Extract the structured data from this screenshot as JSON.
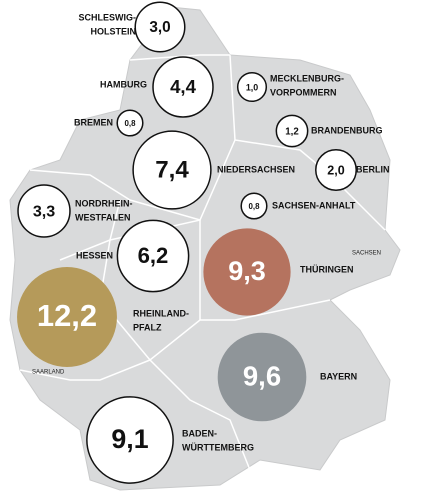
{
  "states": [
    {
      "name": [
        "SCHLESWIG-",
        "HOLSTEIN"
      ],
      "value": 3.0,
      "label": "3,0"
    },
    {
      "name": [
        "HAMBURG"
      ],
      "value": 4.4,
      "label": "4,4"
    },
    {
      "name": [
        "MECKLENBURG-",
        "VORPOMMERN"
      ],
      "value": 1.0,
      "label": "1,0"
    },
    {
      "name": [
        "BREMEN"
      ],
      "value": 0.8,
      "label": "0,8"
    },
    {
      "name": [
        "BRANDENBURG"
      ],
      "value": 1.2,
      "label": "1,2"
    },
    {
      "name": [
        "NIEDERSACHSEN"
      ],
      "value": 7.4,
      "label": "7,4"
    },
    {
      "name": [
        "BERLIN"
      ],
      "value": 2.0,
      "label": "2,0"
    },
    {
      "name": [
        "SACHSEN-ANHALT"
      ],
      "value": 0.8,
      "label": "0,8"
    },
    {
      "name": [
        "NORDRHEIN-",
        "WESTFALEN"
      ],
      "value": 3.3,
      "label": "3,3"
    },
    {
      "name": [
        "HESSEN"
      ],
      "value": 6.2,
      "label": "6,2"
    },
    {
      "name": [
        "THÜRINGEN"
      ],
      "value": 9.3,
      "label": "9,3",
      "color": "#b5735f"
    },
    {
      "name": [
        "RHEINLAND-",
        "PFALZ"
      ],
      "value": 12.2,
      "label": "12,2",
      "color": "#b59a5a"
    },
    {
      "name": [
        "BAYERN"
      ],
      "value": 9.6,
      "label": "9,6",
      "color": "#8f9599"
    },
    {
      "name": [
        "BADEN-",
        "WÜRTTEMBERG"
      ],
      "value": 9.1,
      "label": "9,1"
    }
  ],
  "other_labels": [
    "SACHSEN",
    "SAARLAND"
  ]
}
